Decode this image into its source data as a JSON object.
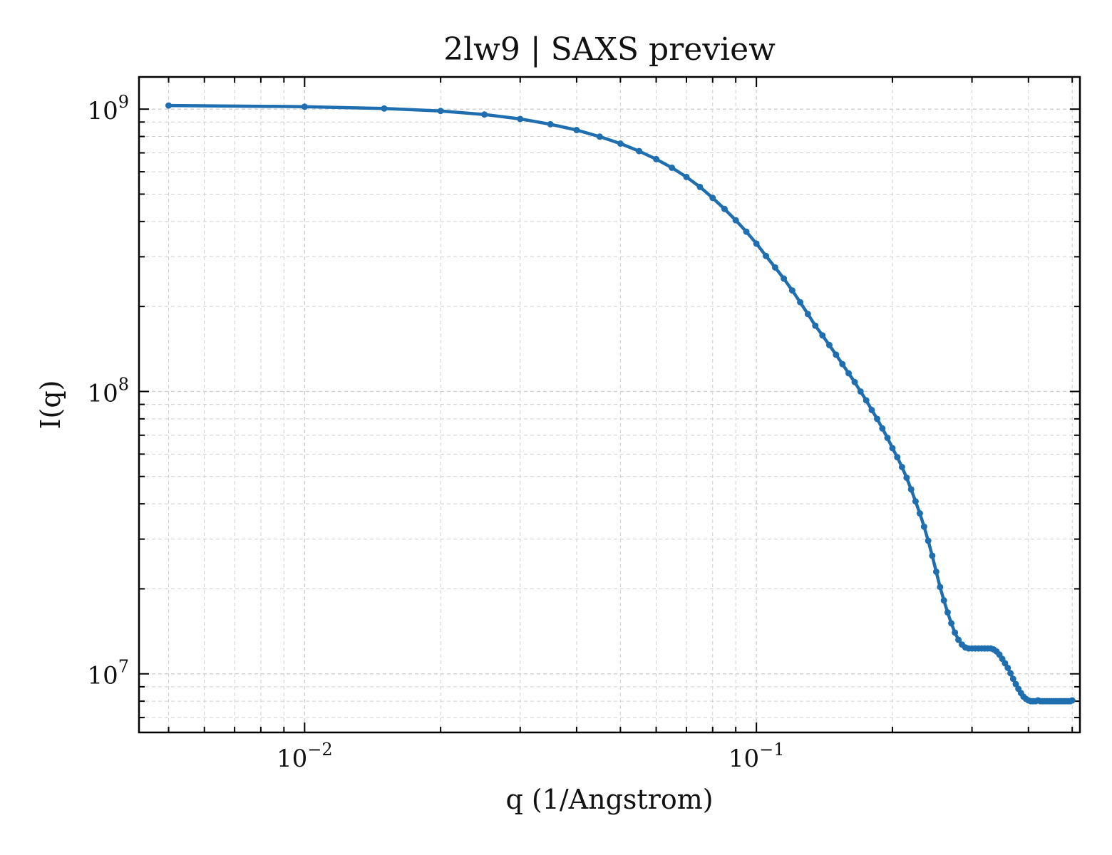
{
  "chart_data": {
    "type": "line",
    "title": "2lw9 | SAXS preview",
    "xlabel": "q (1/Angstrom)",
    "ylabel": "I(q)",
    "x_scale": "log",
    "y_scale": "log",
    "xlim": [
      0.0043,
      0.52
    ],
    "ylim": [
      6200000,
      1300000000
    ],
    "x_ticks": [
      {
        "value": 0.01,
        "base": "10",
        "exp": "−2"
      },
      {
        "value": 0.1,
        "base": "10",
        "exp": "−1"
      }
    ],
    "y_ticks": [
      {
        "value": 10000000,
        "base": "10",
        "exp": "7"
      },
      {
        "value": 100000000,
        "base": "10",
        "exp": "8"
      },
      {
        "value": 1000000000,
        "base": "10",
        "exp": "9"
      }
    ],
    "grid": true,
    "line_color": "#1f6fb0",
    "series": [
      {
        "x": [
          0.005,
          0.01,
          0.015,
          0.02,
          0.025,
          0.03,
          0.035,
          0.04,
          0.045,
          0.05,
          0.055,
          0.06,
          0.065,
          0.07,
          0.075,
          0.08,
          0.085,
          0.09,
          0.095,
          0.1,
          0.105,
          0.11,
          0.115,
          0.12,
          0.125,
          0.13,
          0.135,
          0.14,
          0.145,
          0.15,
          0.155,
          0.16,
          0.165,
          0.17,
          0.175,
          0.18,
          0.185,
          0.19,
          0.195,
          0.2,
          0.205,
          0.21,
          0.215,
          0.22,
          0.225,
          0.23,
          0.235,
          0.24,
          0.245,
          0.25,
          0.255,
          0.26,
          0.265,
          0.27,
          0.275,
          0.28,
          0.285,
          0.29,
          0.295,
          0.3,
          0.305,
          0.31,
          0.315,
          0.32,
          0.325,
          0.33,
          0.335,
          0.34,
          0.345,
          0.35,
          0.355,
          0.36,
          0.365,
          0.37,
          0.375,
          0.38,
          0.385,
          0.39,
          0.395,
          0.4,
          0.405,
          0.41,
          0.415,
          0.42,
          0.425,
          0.43,
          0.435,
          0.44,
          0.445,
          0.45,
          0.455,
          0.46,
          0.465,
          0.47,
          0.475,
          0.48,
          0.485,
          0.49,
          0.495,
          0.5
        ],
        "y": [
          1030000000,
          1020000000,
          1005000000,
          985000000,
          957000000,
          923000000,
          884000000,
          843000000,
          799000000,
          755000000,
          710000000,
          665000000,
          620000000,
          575000000,
          530000000,
          485000000,
          443000000,
          404000000,
          368000000,
          334000000,
          302000000,
          275000000,
          251000000,
          228000000,
          207000000,
          188000000,
          171000000,
          158000000,
          146000000,
          135000000,
          125000000,
          116000000,
          108000000,
          100000000,
          93000000,
          86000000,
          80000000,
          74000000,
          68500000,
          63000000,
          58500000,
          54000000,
          49500000,
          45000000,
          40800000,
          37000000,
          33200000,
          29600000,
          26200000,
          23000000,
          20300000,
          18200000,
          16500000,
          15100000,
          14000000,
          13200000,
          12700000,
          12400000,
          12300000,
          12300000,
          12300000,
          12300000,
          12300000,
          12300000,
          12300000,
          12300000,
          12200000,
          12000000,
          11700000,
          11300000,
          10900000,
          10500000,
          10050000,
          9600000,
          9200000,
          8850000,
          8550000,
          8300000,
          8150000,
          8050000,
          8000000,
          8000000,
          8000000,
          8050000,
          8000000,
          8000000,
          8000000,
          8000000,
          8000000,
          8000000,
          8000000,
          8000000,
          8000000,
          8000000,
          8000000,
          8000000,
          8000000,
          8000000,
          8000000,
          8050000
        ]
      }
    ]
  }
}
